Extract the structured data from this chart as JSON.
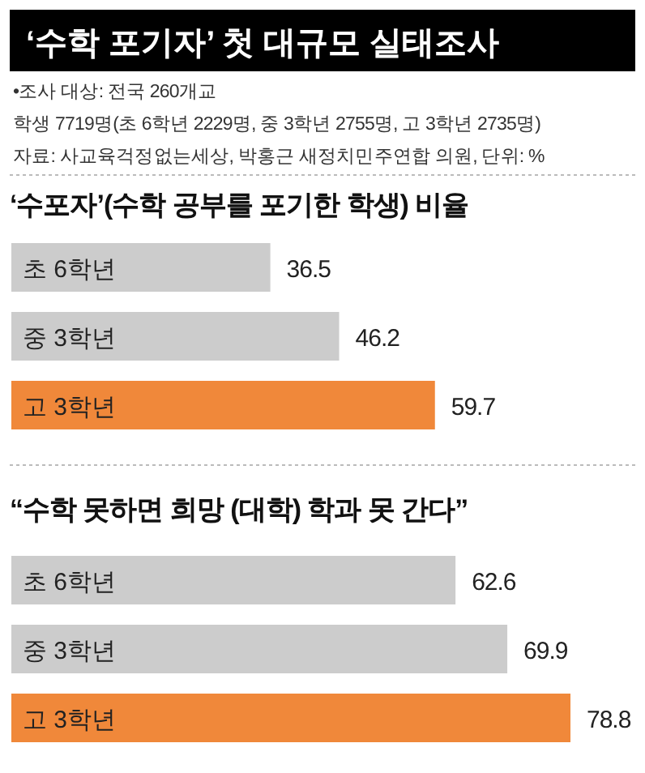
{
  "chart_data": [
    {
      "type": "bar",
      "orientation": "horizontal",
      "data_labels": true,
      "title": "‘수학 포기자’ 첫 대규모 실태조사",
      "annotations": [
        "•조사 대상: 전국 260개교",
        "학생 7719명(초 6학년 2229명, 중 3학년 2755명, 고 3학년 2735명)",
        "자료: 사교육걱정없는세상, 박홍근 새정치민주연합 의원, 단위: %"
      ],
      "subtitle": "‘수포자’(수학 공부를 포기한 학생) 비율",
      "categories": [
        "초 6학년",
        "중 3학년",
        "고 3학년"
      ],
      "values": [
        36.5,
        46.2,
        59.7
      ],
      "colors": [
        "#cccccc",
        "#cccccc",
        "#f0883a"
      ]
    },
    {
      "type": "bar",
      "orientation": "horizontal",
      "data_labels": true,
      "title": "“수학 못하면 희망 (대학) 학과 못 간다”",
      "categories": [
        "초 6학년",
        "중 3학년",
        "고 3학년"
      ],
      "values": [
        62.6,
        69.9,
        78.8
      ],
      "colors": [
        "#cccccc",
        "#cccccc",
        "#f0883a"
      ]
    }
  ]
}
